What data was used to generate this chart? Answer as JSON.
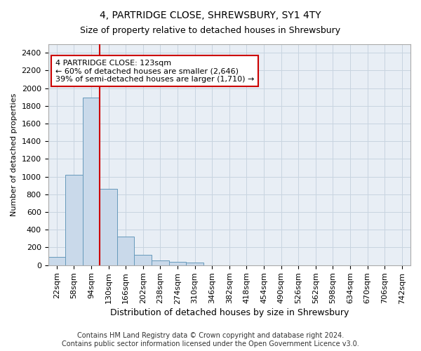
{
  "title1": "4, PARTRIDGE CLOSE, SHREWSBURY, SY1 4TY",
  "title2": "Size of property relative to detached houses in Shrewsbury",
  "xlabel": "Distribution of detached houses by size in Shrewsbury",
  "ylabel": "Number of detached properties",
  "bin_labels": [
    "22sqm",
    "58sqm",
    "94sqm",
    "130sqm",
    "166sqm",
    "202sqm",
    "238sqm",
    "274sqm",
    "310sqm",
    "346sqm",
    "382sqm",
    "418sqm",
    "454sqm",
    "490sqm",
    "526sqm",
    "562sqm",
    "598sqm",
    "634sqm",
    "670sqm",
    "706sqm",
    "742sqm"
  ],
  "bar_values": [
    90,
    1020,
    1890,
    860,
    320,
    120,
    55,
    40,
    30,
    0,
    0,
    0,
    0,
    0,
    0,
    0,
    0,
    0,
    0,
    0,
    0
  ],
  "bar_color": "#c9d9ea",
  "bar_edge_color": "#6699bb",
  "grid_color": "#c8d4e0",
  "background_color": "#e8eef5",
  "vline_x_index": 2,
  "annotation_line1": "4 PARTRIDGE CLOSE: 123sqm",
  "annotation_line2": "← 60% of detached houses are smaller (2,646)",
  "annotation_line3": "39% of semi-detached houses are larger (1,710) →",
  "annotation_box_color": "#ffffff",
  "annotation_box_edge_color": "#cc0000",
  "vline_color": "#cc0000",
  "ylim": [
    0,
    2500
  ],
  "yticks": [
    0,
    200,
    400,
    600,
    800,
    1000,
    1200,
    1400,
    1600,
    1800,
    2000,
    2200,
    2400
  ],
  "footer_line1": "Contains HM Land Registry data © Crown copyright and database right 2024.",
  "footer_line2": "Contains public sector information licensed under the Open Government Licence v3.0.",
  "title1_fontsize": 10,
  "title2_fontsize": 9,
  "xlabel_fontsize": 9,
  "ylabel_fontsize": 8,
  "tick_fontsize": 8,
  "annotation_fontsize": 8,
  "footer_fontsize": 7
}
